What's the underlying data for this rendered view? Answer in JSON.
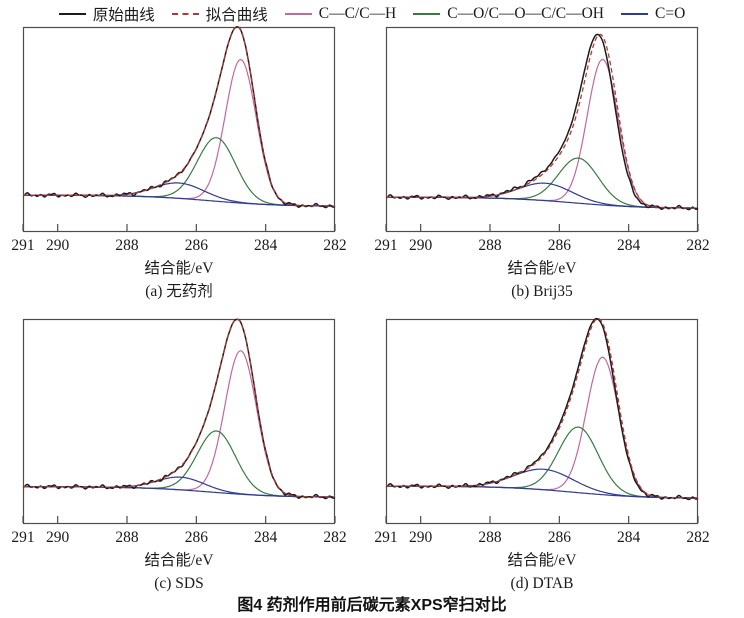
{
  "caption": "图4 药剂作用前后碳元素XPS窄扫对比",
  "legend": {
    "items": [
      {
        "name": "original-curve",
        "label": "原始曲线",
        "color": "#1c1c1c",
        "style": "solid"
      },
      {
        "name": "fitted-curve",
        "label": "拟合曲线",
        "color": "#b03a2e",
        "style": "dashed"
      },
      {
        "name": "c-c-bond",
        "label": "C—C/C—H",
        "color": "#c5679f",
        "style": "solid"
      },
      {
        "name": "c-o-bond",
        "label": "C—O/C—O—C/C—OH",
        "color": "#377b42",
        "style": "solid"
      },
      {
        "name": "c-double-o-bond",
        "label": "C=O",
        "color": "#2e3b94",
        "style": "solid"
      }
    ]
  },
  "chart_data": [
    {
      "id": "a",
      "type": "line",
      "label": "(a) 无药剂",
      "xlabel": "结合能/eV",
      "x_range": [
        291,
        282
      ],
      "x_ticks": [
        291,
        290,
        288,
        286,
        284,
        282
      ],
      "ylim": [
        0,
        1
      ],
      "grid": false,
      "background": {
        "left": 0.18,
        "right": 0.125,
        "center": 285.6,
        "width": 1.0
      },
      "envelope_shift": 0,
      "peaks": [
        {
          "name": "C—C/C—H",
          "center": 284.72,
          "height": 0.7,
          "fwhm": 1.05
        },
        {
          "name": "C—O/C—O—C/C—OH",
          "center": 285.42,
          "height": 0.31,
          "fwhm": 1.3
        },
        {
          "name": "C=O",
          "center": 286.5,
          "height": 0.075,
          "fwhm": 1.7
        }
      ]
    },
    {
      "id": "b",
      "type": "line",
      "label": "(b) Brij35",
      "xlabel": "结合能/eV",
      "x_range": [
        291,
        282
      ],
      "x_ticks": [
        291,
        290,
        288,
        286,
        284,
        282
      ],
      "ylim": [
        0,
        1
      ],
      "grid": false,
      "background": {
        "left": 0.17,
        "right": 0.115,
        "center": 285.6,
        "width": 1.0
      },
      "envelope_shift": 0.07,
      "peaks": [
        {
          "name": "C—C/C—H",
          "center": 284.75,
          "height": 0.71,
          "fwhm": 1.05
        },
        {
          "name": "C—O/C—O—C/C—OH",
          "center": 285.45,
          "height": 0.22,
          "fwhm": 1.35
        },
        {
          "name": "C=O",
          "center": 286.4,
          "height": 0.085,
          "fwhm": 1.8
        }
      ]
    },
    {
      "id": "c",
      "type": "line",
      "label": "(c) SDS",
      "xlabel": "结合能/eV",
      "x_range": [
        291,
        282
      ],
      "x_ticks": [
        291,
        290,
        288,
        286,
        284,
        282
      ],
      "ylim": [
        0,
        1
      ],
      "grid": false,
      "background": {
        "left": 0.182,
        "right": 0.13,
        "center": 285.6,
        "width": 1.0
      },
      "envelope_shift": 0,
      "peaks": [
        {
          "name": "C—C/C—H",
          "center": 284.72,
          "height": 0.7,
          "fwhm": 1.08
        },
        {
          "name": "C—O/C—O—C/C—OH",
          "center": 285.42,
          "height": 0.3,
          "fwhm": 1.3
        },
        {
          "name": "C=O",
          "center": 286.45,
          "height": 0.062,
          "fwhm": 1.6
        }
      ]
    },
    {
      "id": "d",
      "type": "line",
      "label": "(d) DTAB",
      "xlabel": "结合能/eV",
      "x_range": [
        291,
        282
      ],
      "x_ticks": [
        291,
        290,
        288,
        286,
        284,
        282
      ],
      "ylim": [
        0,
        1
      ],
      "grid": false,
      "background": {
        "left": 0.185,
        "right": 0.125,
        "center": 285.6,
        "width": 1.0
      },
      "envelope_shift": 0.04,
      "peaks": [
        {
          "name": "C—C/C—H",
          "center": 284.75,
          "height": 0.67,
          "fwhm": 1.1
        },
        {
          "name": "C—O/C—O—C/C—OH",
          "center": 285.45,
          "height": 0.32,
          "fwhm": 1.35
        },
        {
          "name": "C=O",
          "center": 286.45,
          "height": 0.1,
          "fwhm": 2.0
        }
      ]
    }
  ]
}
